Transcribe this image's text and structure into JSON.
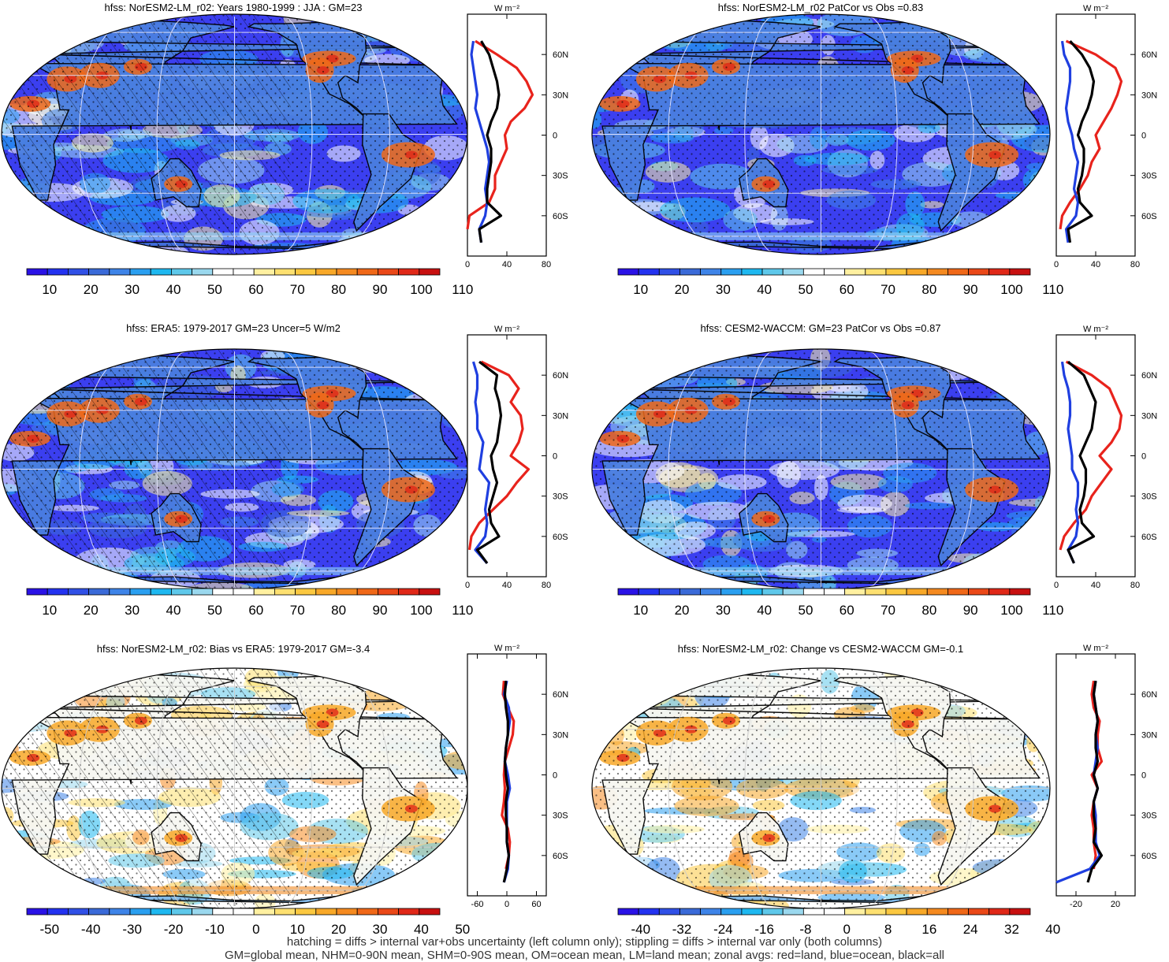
{
  "panels": [
    {
      "id": "p1",
      "title": "hfss: NorESM2-LM_r02: Years 1980-1999 : JJA : GM=23",
      "scheme": "abs",
      "hatch": true,
      "colorbar_labels": [
        "10",
        "20",
        "30",
        "40",
        "50",
        "60",
        "70",
        "80",
        "90",
        "100",
        "110"
      ],
      "zonal": {
        "units": "W m⁻²",
        "xticks": [
          "0",
          "40",
          "80"
        ],
        "xlim": [
          0,
          80
        ],
        "lat_labels": [
          "60N",
          "30N",
          "0",
          "30S",
          "60S"
        ]
      }
    },
    {
      "id": "p2",
      "title": "hfss: NorESM2-LM_r02 PatCor vs Obs =0.83",
      "scheme": "abs",
      "hatch": false,
      "colorbar_labels": [
        "10",
        "20",
        "30",
        "40",
        "50",
        "60",
        "70",
        "80",
        "90",
        "100",
        "110"
      ],
      "zonal": {
        "units": "W m⁻²",
        "xticks": [
          "0",
          "40",
          "80"
        ],
        "xlim": [
          0,
          80
        ],
        "lat_labels": [
          "60N",
          "30N",
          "0",
          "30S",
          "60S"
        ]
      }
    },
    {
      "id": "p3",
      "title": "hfss: ERA5: 1979-2017 GM=23 Uncer=5 W/m2",
      "scheme": "abs",
      "hatch": true,
      "colorbar_labels": [
        "10",
        "20",
        "30",
        "40",
        "50",
        "60",
        "70",
        "80",
        "90",
        "100",
        "110"
      ],
      "zonal": {
        "units": "W m⁻²",
        "xticks": [
          "0",
          "40",
          "80"
        ],
        "xlim": [
          0,
          80
        ],
        "lat_labels": [
          "60N",
          "30N",
          "0",
          "30S",
          "60S"
        ]
      }
    },
    {
      "id": "p4",
      "title": "hfss: CESM2-WACCM: GM=23 PatCor vs Obs =0.87",
      "scheme": "abs",
      "hatch": false,
      "colorbar_labels": [
        "10",
        "20",
        "30",
        "40",
        "50",
        "60",
        "70",
        "80",
        "90",
        "100",
        "110"
      ],
      "zonal": {
        "units": "W m⁻²",
        "xticks": [
          "0",
          "40",
          "80"
        ],
        "xlim": [
          0,
          80
        ],
        "lat_labels": [
          "60N",
          "30N",
          "0",
          "30S",
          "60S"
        ]
      }
    },
    {
      "id": "p5",
      "title": "hfss: NorESM2-LM_r02: Bias vs ERA5: 1979-2017 GM=-3.4",
      "scheme": "diff",
      "hatch": true,
      "colorbar_labels": [
        "-50",
        "-40",
        "-30",
        "-20",
        "-10",
        "0",
        "10",
        "20",
        "30",
        "40",
        "50"
      ],
      "zonal": {
        "units": "W m⁻²",
        "xticks": [
          "-60",
          "0",
          "60"
        ],
        "xlim": [
          -80,
          80
        ],
        "lat_labels": [
          "60N",
          "30N",
          "0",
          "30S",
          "60S"
        ]
      }
    },
    {
      "id": "p6",
      "title": "hfss: NorESM2-LM_r02: Change vs CESM2-WACCM GM=-0.1",
      "scheme": "diff",
      "hatch": false,
      "colorbar_labels": [
        "-40",
        "-32",
        "-24",
        "-16",
        "-8",
        "0",
        "8",
        "16",
        "24",
        "32",
        "40"
      ],
      "zonal": {
        "units": "W m⁻²",
        "xticks": [
          "-20",
          "20"
        ],
        "xlim": [
          -40,
          40
        ],
        "lat_labels": [
          "60N",
          "30N",
          "0",
          "30S",
          "60S"
        ]
      }
    }
  ],
  "colors": {
    "abs": [
      "#2a12e6",
      "#2332f0",
      "#3050e6",
      "#3a6ad8",
      "#3e84e8",
      "#2a9ff0",
      "#1eb8f0",
      "#5ec8ea",
      "#9ad8ee",
      "#ffffff",
      "#ffffff",
      "#fff0a0",
      "#fde070",
      "#fbc840",
      "#f8a828",
      "#f58a20",
      "#f06818",
      "#ea4818",
      "#e02818",
      "#c81010"
    ],
    "diff": [
      "#2a12e6",
      "#2332f0",
      "#3050e6",
      "#3a6ad8",
      "#3e84e8",
      "#2a9ff0",
      "#1eb8f0",
      "#5ec8ea",
      "#9ad8ee",
      "#ffffff",
      "#ffffff",
      "#fff0a0",
      "#fde070",
      "#fbc840",
      "#f8a828",
      "#f58a20",
      "#f06818",
      "#ea4818",
      "#e02818",
      "#c81010"
    ],
    "zonal_land": "#e8231c",
    "zonal_ocean": "#1f3fe0",
    "zonal_all": "#000000"
  },
  "chart_data": [
    {
      "type": "line",
      "panel": "p1",
      "title": "hfss: NorESM2-LM_r02: Years 1980-1999 : JJA : GM=23",
      "xlabel": "W m-2",
      "xlim": [
        0,
        80
      ],
      "ylim": [
        -90,
        90
      ],
      "lat": [
        -80,
        -70,
        -60,
        -50,
        -40,
        -30,
        -20,
        -10,
        0,
        10,
        20,
        30,
        40,
        50,
        60,
        70,
        80
      ],
      "series": [
        {
          "name": "red=land",
          "values": [
            null,
            -2,
            2,
            22,
            28,
            28,
            34,
            40,
            38,
            44,
            58,
            66,
            60,
            50,
            30,
            8,
            null
          ]
        },
        {
          "name": "blue=ocean",
          "values": [
            14,
            12,
            18,
            20,
            18,
            20,
            22,
            20,
            16,
            12,
            8,
            10,
            8,
            6,
            4,
            6,
            null
          ]
        },
        {
          "name": "black=all",
          "values": [
            14,
            12,
            34,
            20,
            20,
            22,
            24,
            24,
            20,
            24,
            30,
            32,
            30,
            26,
            22,
            14,
            null
          ]
        }
      ]
    },
    {
      "type": "line",
      "panel": "p2",
      "title": "hfss: NorESM2-LM_r02 PatCor vs Obs =0.83",
      "xlabel": "W m-2",
      "xlim": [
        0,
        80
      ],
      "ylim": [
        -90,
        90
      ],
      "lat": [
        -80,
        -70,
        -60,
        -50,
        -40,
        -30,
        -20,
        -10,
        0,
        10,
        20,
        30,
        40,
        50,
        60,
        70,
        80
      ],
      "series": [
        {
          "name": "red=land",
          "values": [
            null,
            4,
            6,
            14,
            24,
            32,
            36,
            44,
            40,
            48,
            56,
            62,
            66,
            60,
            40,
            10,
            null
          ]
        },
        {
          "name": "blue=ocean",
          "values": [
            12,
            10,
            20,
            22,
            18,
            20,
            22,
            18,
            16,
            12,
            10,
            12,
            14,
            14,
            8,
            6,
            null
          ]
        },
        {
          "name": "black=all",
          "values": [
            14,
            12,
            36,
            24,
            22,
            26,
            28,
            28,
            22,
            26,
            32,
            36,
            38,
            34,
            26,
            14,
            null
          ]
        }
      ]
    },
    {
      "type": "line",
      "panel": "p3",
      "title": "hfss: ERA5: 1979-2017 GM=23 Uncer=5 W/m2",
      "xlabel": "W m-2",
      "xlim": [
        0,
        80
      ],
      "ylim": [
        -90,
        90
      ],
      "lat": [
        -80,
        -70,
        -60,
        -50,
        -40,
        -30,
        -20,
        -10,
        0,
        10,
        20,
        30,
        40,
        50,
        60,
        70,
        80
      ],
      "series": [
        {
          "name": "red=land",
          "values": [
            null,
            2,
            4,
            12,
            26,
            40,
            50,
            62,
            44,
            52,
            56,
            54,
            44,
            52,
            42,
            14,
            null
          ]
        },
        {
          "name": "blue=ocean",
          "values": [
            20,
            8,
            18,
            20,
            18,
            20,
            22,
            12,
            14,
            16,
            10,
            10,
            8,
            10,
            10,
            6,
            null
          ]
        },
        {
          "name": "black=all",
          "values": [
            20,
            10,
            32,
            24,
            22,
            26,
            30,
            26,
            24,
            30,
            32,
            34,
            32,
            28,
            30,
            12,
            null
          ]
        }
      ]
    },
    {
      "type": "line",
      "panel": "p4",
      "title": "hfss: CESM2-WACCM: GM=23 PatCor vs Obs =0.87",
      "xlabel": "W m-2",
      "xlim": [
        0,
        80
      ],
      "ylim": [
        -90,
        90
      ],
      "lat": [
        -80,
        -70,
        -60,
        -50,
        -40,
        -30,
        -20,
        -10,
        0,
        10,
        20,
        30,
        40,
        50,
        60,
        70,
        80
      ],
      "series": [
        {
          "name": "red=land",
          "values": [
            null,
            4,
            8,
            18,
            30,
            36,
            46,
            56,
            44,
            56,
            64,
            66,
            60,
            54,
            36,
            10,
            null
          ]
        },
        {
          "name": "blue=ocean",
          "values": [
            18,
            12,
            20,
            22,
            20,
            22,
            22,
            16,
            16,
            14,
            12,
            14,
            14,
            12,
            8,
            6,
            null
          ]
        },
        {
          "name": "black=all",
          "values": [
            18,
            12,
            38,
            26,
            24,
            28,
            30,
            30,
            24,
            30,
            36,
            38,
            40,
            34,
            28,
            12,
            null
          ]
        }
      ]
    },
    {
      "type": "line",
      "panel": "p5",
      "title": "hfss: NorESM2-LM_r02: Bias vs ERA5: 1979-2017 GM=-3.4",
      "xlabel": "W m-2",
      "xlim": [
        -80,
        80
      ],
      "ylim": [
        -90,
        90
      ],
      "lat": [
        -80,
        -70,
        -60,
        -50,
        -40,
        -30,
        -20,
        -10,
        0,
        10,
        20,
        30,
        40,
        50,
        60,
        70,
        80
      ],
      "series": [
        {
          "name": "red=land",
          "values": [
            null,
            -2,
            4,
            6,
            2,
            -10,
            -6,
            -4,
            -6,
            -4,
            4,
            12,
            14,
            2,
            -8,
            -6,
            null
          ]
        },
        {
          "name": "blue=ocean",
          "values": [
            -6,
            2,
            4,
            0,
            0,
            0,
            0,
            6,
            2,
            -4,
            -2,
            2,
            6,
            4,
            -6,
            0,
            null
          ]
        },
        {
          "name": "black=all",
          "values": [
            -6,
            0,
            4,
            0,
            0,
            -2,
            -2,
            2,
            -2,
            -4,
            -2,
            2,
            2,
            -2,
            -4,
            -2,
            null
          ]
        }
      ]
    },
    {
      "type": "line",
      "panel": "p6",
      "title": "hfss: NorESM2-LM_r02: Change vs CESM2-WACCM GM=-0.1",
      "xlabel": "W m-2",
      "xlim": [
        -40,
        40
      ],
      "ylim": [
        -90,
        90
      ],
      "lat": [
        -80,
        -70,
        -60,
        -50,
        -40,
        -30,
        -20,
        -10,
        0,
        10,
        20,
        30,
        40,
        50,
        60,
        70,
        80
      ],
      "series": [
        {
          "name": "red=land",
          "values": [
            null,
            -2,
            0,
            -2,
            -2,
            -4,
            -2,
            2,
            -4,
            6,
            2,
            2,
            4,
            -2,
            -4,
            -2,
            null
          ]
        },
        {
          "name": "blue=ocean",
          "values": [
            -40,
            -6,
            4,
            0,
            0,
            0,
            -2,
            2,
            -2,
            0,
            2,
            0,
            2,
            0,
            -2,
            0,
            null
          ]
        },
        {
          "name": "black=all",
          "values": [
            -8,
            -4,
            6,
            -2,
            0,
            -2,
            -2,
            2,
            -2,
            2,
            0,
            0,
            2,
            0,
            -2,
            0,
            null
          ]
        }
      ]
    }
  ],
  "footer": {
    "line1": "hatching = diffs > internal var+obs uncertainty (left column only); stippling = diffs > internal var only (both columns)",
    "line2": "GM=global mean, NHM=0-90N mean, SHM=0-90S mean, OM=ocean mean, LM=land mean; zonal avgs: red=land, blue=ocean, black=all"
  }
}
